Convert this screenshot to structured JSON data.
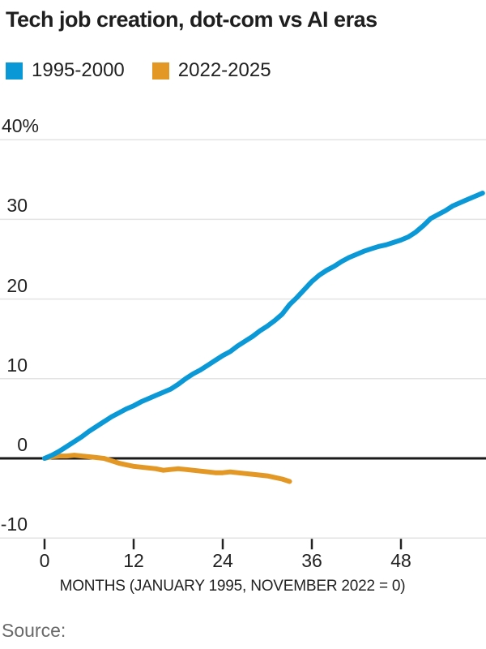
{
  "title": "Tech job creation, dot-com vs AI eras",
  "legend": [
    {
      "label": "1995-2000",
      "color": "#0a99d6"
    },
    {
      "label": "2022-2025",
      "color": "#e39724"
    }
  ],
  "source_label": "Source:",
  "colors": {
    "dotcom_blue": "#0a99d6",
    "ai_orange": "#e39724",
    "gridline": "#e3e3e3",
    "zero_line": "#1a1a1a",
    "text_dark": "#222222",
    "text_gray": "#696969"
  },
  "chart_data": {
    "type": "line",
    "title": "Tech job creation, dot-com vs AI eras",
    "xlabel": "MONTHS (JANUARY 1995, NOVEMBER 2022 = 0)",
    "ylabel": "",
    "ylim": [
      -10,
      40
    ],
    "xlim": [
      0,
      59
    ],
    "grid": "horizontal",
    "legend_position": "top-left",
    "y_ticks": [
      {
        "value": 40,
        "label": "40%"
      },
      {
        "value": 30,
        "label": "30"
      },
      {
        "value": 20,
        "label": "20"
      },
      {
        "value": 10,
        "label": "10"
      },
      {
        "value": 0,
        "label": "0"
      },
      {
        "value": -10,
        "label": "-10"
      }
    ],
    "x_ticks": [
      {
        "month": 0,
        "label": "0"
      },
      {
        "month": 12,
        "label": "12"
      },
      {
        "month": 24,
        "label": "24"
      },
      {
        "month": 36,
        "label": "36"
      },
      {
        "month": 48,
        "label": "48"
      }
    ],
    "series": [
      {
        "name": "1995-2000",
        "color": "#0a99d6",
        "start_month": 0,
        "values": [
          0,
          0.4,
          0.9,
          1.5,
          2.1,
          2.7,
          3.4,
          4.0,
          4.6,
          5.2,
          5.7,
          6.2,
          6.6,
          7.1,
          7.5,
          7.9,
          8.3,
          8.7,
          9.3,
          10.0,
          10.6,
          11.1,
          11.7,
          12.3,
          12.9,
          13.4,
          14.1,
          14.7,
          15.3,
          16.0,
          16.6,
          17.3,
          18.1,
          19.3,
          20.2,
          21.2,
          22.2,
          23.0,
          23.6,
          24.1,
          24.7,
          25.2,
          25.6,
          26.0,
          26.3,
          26.6,
          26.8,
          27.1,
          27.4,
          27.8,
          28.4,
          29.2,
          30.1,
          30.6,
          31.1,
          31.7,
          32.1,
          32.5,
          32.9,
          33.3
        ]
      },
      {
        "name": "2022-2025",
        "color": "#e39724",
        "start_month": 0,
        "values": [
          0,
          0.2,
          0.3,
          0.3,
          0.4,
          0.3,
          0.2,
          0.1,
          0.0,
          -0.3,
          -0.6,
          -0.8,
          -1.0,
          -1.1,
          -1.2,
          -1.3,
          -1.5,
          -1.4,
          -1.3,
          -1.4,
          -1.5,
          -1.6,
          -1.7,
          -1.8,
          -1.8,
          -1.7,
          -1.8,
          -1.9,
          -2.0,
          -2.1,
          -2.2,
          -2.4,
          -2.6,
          -2.9
        ]
      }
    ]
  }
}
